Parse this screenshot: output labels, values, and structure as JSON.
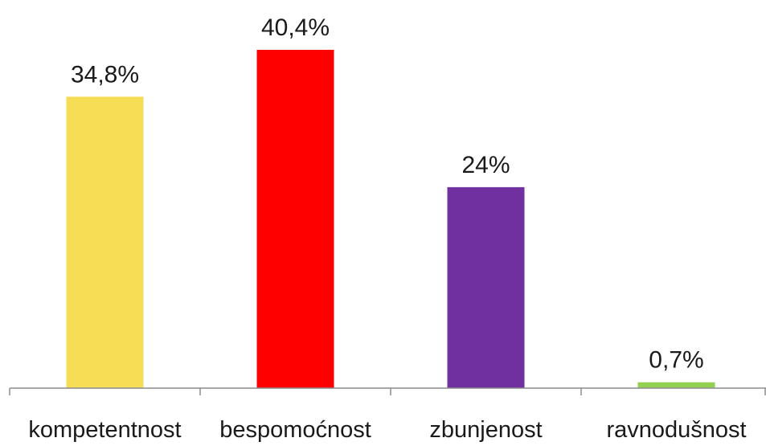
{
  "chart_data": {
    "type": "bar",
    "categories": [
      "kompetentnost",
      "bespomoćnost",
      "zbunjenost",
      "ravnodušnost"
    ],
    "values": [
      34.8,
      40.4,
      24,
      0.7
    ],
    "value_labels": [
      "34,8%",
      "40,4%",
      "24%",
      "0,7%"
    ],
    "colors": [
      "#f7dc56",
      "#ff0000",
      "#7030a0",
      "#92d050"
    ],
    "title": "",
    "xlabel": "",
    "ylabel": "",
    "ylim": [
      0,
      40.4
    ],
    "grid": false,
    "legend": "none"
  }
}
